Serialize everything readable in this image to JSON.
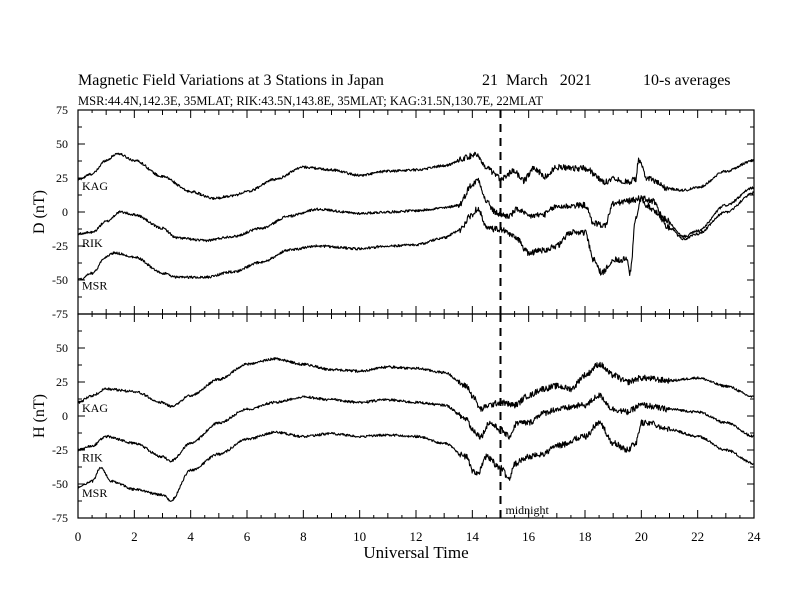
{
  "header": {
    "title": "Magnetic Field Variations at 3 Stations in Japan",
    "date": "21  March   2021",
    "averaging": "10-s averages",
    "stations_line": "MSR:44.4N,142.3E, 35MLAT;  RIK:43.5N,143.8E, 35MLAT;  KAG:31.5N,130.7E, 22MLAT"
  },
  "chart_data": [
    {
      "type": "line",
      "panel": "D",
      "ylabel": "D (nT)",
      "ylim": [
        -75,
        75
      ],
      "yticks": [
        -75,
        -50,
        -25,
        0,
        25,
        50,
        75
      ],
      "xlim": [
        0,
        24
      ],
      "xticks": [
        0,
        2,
        4,
        6,
        8,
        10,
        12,
        14,
        16,
        18,
        20,
        22,
        24
      ],
      "annotation": {
        "x": 15,
        "label": "midnight"
      },
      "series": [
        {
          "name": "KAG",
          "points": [
            [
              0,
              24
            ],
            [
              0.5,
              28
            ],
            [
              1,
              38
            ],
            [
              1.4,
              43
            ],
            [
              2,
              38
            ],
            [
              3,
              26
            ],
            [
              4,
              15
            ],
            [
              4.8,
              10
            ],
            [
              5.5,
              12
            ],
            [
              6,
              15
            ],
            [
              7,
              24
            ],
            [
              8,
              33
            ],
            [
              9,
              31
            ],
            [
              10,
              27
            ],
            [
              11,
              30
            ],
            [
              12,
              31
            ],
            [
              13,
              34
            ],
            [
              13.8,
              40
            ],
            [
              14.1,
              43
            ],
            [
              14.5,
              32
            ],
            [
              15,
              25
            ],
            [
              15.5,
              30
            ],
            [
              15.8,
              23
            ],
            [
              16.2,
              32
            ],
            [
              16.6,
              26
            ],
            [
              17,
              33
            ],
            [
              18,
              32
            ],
            [
              18.7,
              22
            ],
            [
              19,
              25
            ],
            [
              19.5,
              22
            ],
            [
              19.8,
              24
            ],
            [
              19.9,
              38
            ],
            [
              20.2,
              25
            ],
            [
              21,
              17
            ],
            [
              21.5,
              16
            ],
            [
              22,
              18
            ],
            [
              23,
              30
            ],
            [
              24,
              38
            ]
          ]
        },
        {
          "name": "RIK",
          "points": [
            [
              0,
              -16
            ],
            [
              0.5,
              -15
            ],
            [
              1,
              -7
            ],
            [
              1.5,
              0
            ],
            [
              2,
              -2
            ],
            [
              3,
              -12
            ],
            [
              3.5,
              -19
            ],
            [
              4.5,
              -21
            ],
            [
              5.5,
              -18
            ],
            [
              6.5,
              -12
            ],
            [
              7.5,
              -3
            ],
            [
              8.5,
              2
            ],
            [
              10,
              -1
            ],
            [
              11,
              0
            ],
            [
              12,
              1
            ],
            [
              13,
              3
            ],
            [
              13.5,
              5
            ],
            [
              14,
              20
            ],
            [
              14.2,
              24
            ],
            [
              14.5,
              8
            ],
            [
              14.8,
              0
            ],
            [
              15,
              -2
            ],
            [
              15.3,
              -3
            ],
            [
              15.6,
              2
            ],
            [
              16,
              -3
            ],
            [
              16.5,
              -2
            ],
            [
              17,
              4
            ],
            [
              18,
              5
            ],
            [
              18.3,
              -8
            ],
            [
              18.7,
              -10
            ],
            [
              19,
              6
            ],
            [
              19.5,
              8
            ],
            [
              20,
              10
            ],
            [
              20.4,
              8
            ],
            [
              20.8,
              -5
            ],
            [
              21.5,
              -18
            ],
            [
              22,
              -14
            ],
            [
              23,
              5
            ],
            [
              24,
              18
            ]
          ]
        },
        {
          "name": "MSR",
          "points": [
            [
              0,
              -50
            ],
            [
              0.5,
              -45
            ],
            [
              1,
              -33
            ],
            [
              1.3,
              -30
            ],
            [
              2,
              -33
            ],
            [
              3,
              -45
            ],
            [
              3.5,
              -48
            ],
            [
              4.5,
              -48
            ],
            [
              5.5,
              -44
            ],
            [
              6.5,
              -37
            ],
            [
              7.5,
              -28
            ],
            [
              8.5,
              -25
            ],
            [
              10,
              -27
            ],
            [
              11,
              -25
            ],
            [
              12,
              -24
            ],
            [
              13,
              -19
            ],
            [
              13.5,
              -14
            ],
            [
              14,
              -2
            ],
            [
              14.2,
              3
            ],
            [
              14.5,
              -12
            ],
            [
              15,
              -13
            ],
            [
              15.5,
              -18
            ],
            [
              16,
              -30
            ],
            [
              16.5,
              -28
            ],
            [
              17,
              -25
            ],
            [
              17.5,
              -15
            ],
            [
              18,
              -15
            ],
            [
              18.3,
              -35
            ],
            [
              18.6,
              -45
            ],
            [
              19,
              -35
            ],
            [
              19.5,
              -35
            ],
            [
              19.6,
              -45
            ],
            [
              19.8,
              -5
            ],
            [
              20,
              10
            ],
            [
              20.2,
              5
            ],
            [
              20.5,
              0
            ],
            [
              21,
              -12
            ],
            [
              21.5,
              -20
            ],
            [
              22,
              -16
            ],
            [
              23,
              0
            ],
            [
              24,
              14
            ]
          ]
        }
      ]
    },
    {
      "type": "line",
      "panel": "H",
      "ylabel": "H (nT)",
      "xlabel": "Universal Time",
      "ylim": [
        -75,
        75
      ],
      "yticks": [
        -75,
        -50,
        -25,
        0,
        25,
        50,
        75
      ],
      "xlim": [
        0,
        24
      ],
      "xticks": [
        0,
        2,
        4,
        6,
        8,
        10,
        12,
        14,
        16,
        18,
        20,
        22,
        24
      ],
      "annotation": {
        "x": 15,
        "label": "midnight"
      },
      "series": [
        {
          "name": "KAG",
          "points": [
            [
              0,
              10
            ],
            [
              0.5,
              15
            ],
            [
              1,
              20
            ],
            [
              2,
              18
            ],
            [
              3,
              10
            ],
            [
              3.3,
              7
            ],
            [
              4,
              15
            ],
            [
              5,
              27
            ],
            [
              6,
              38
            ],
            [
              7,
              42
            ],
            [
              8,
              38
            ],
            [
              9,
              34
            ],
            [
              10,
              33
            ],
            [
              11,
              36
            ],
            [
              12,
              35
            ],
            [
              13,
              32
            ],
            [
              13.8,
              22
            ],
            [
              14,
              15
            ],
            [
              14.3,
              5
            ],
            [
              14.6,
              8
            ],
            [
              15,
              10
            ],
            [
              15.5,
              8
            ],
            [
              16,
              15
            ],
            [
              16.5,
              20
            ],
            [
              17,
              22
            ],
            [
              17.5,
              20
            ],
            [
              18,
              30
            ],
            [
              18.5,
              38
            ],
            [
              19,
              30
            ],
            [
              19.5,
              25
            ],
            [
              20,
              28
            ],
            [
              21,
              26
            ],
            [
              22,
              28
            ],
            [
              23,
              22
            ],
            [
              24,
              14
            ]
          ]
        },
        {
          "name": "RIK",
          "points": [
            [
              0,
              -25
            ],
            [
              0.5,
              -22
            ],
            [
              1,
              -15
            ],
            [
              2,
              -20
            ],
            [
              3,
              -30
            ],
            [
              3.3,
              -33
            ],
            [
              4,
              -20
            ],
            [
              5,
              -5
            ],
            [
              6,
              5
            ],
            [
              7,
              10
            ],
            [
              8,
              14
            ],
            [
              9,
              12
            ],
            [
              10,
              10
            ],
            [
              11,
              12
            ],
            [
              12,
              10
            ],
            [
              13,
              8
            ],
            [
              13.8,
              -2
            ],
            [
              14,
              -10
            ],
            [
              14.3,
              -15
            ],
            [
              14.6,
              -5
            ],
            [
              15,
              -10
            ],
            [
              15.3,
              -15
            ],
            [
              15.6,
              -5
            ],
            [
              16,
              -5
            ],
            [
              16.5,
              2
            ],
            [
              17,
              5
            ],
            [
              18,
              8
            ],
            [
              18.5,
              15
            ],
            [
              19,
              5
            ],
            [
              19.5,
              3
            ],
            [
              20,
              8
            ],
            [
              21,
              5
            ],
            [
              22,
              3
            ],
            [
              23,
              -5
            ],
            [
              24,
              -15
            ]
          ]
        },
        {
          "name": "MSR",
          "points": [
            [
              0,
              -52
            ],
            [
              0.5,
              -48
            ],
            [
              0.8,
              -38
            ],
            [
              1.2,
              -48
            ],
            [
              2,
              -54
            ],
            [
              3,
              -58
            ],
            [
              3.3,
              -62
            ],
            [
              4,
              -40
            ],
            [
              5,
              -28
            ],
            [
              6,
              -17
            ],
            [
              7,
              -12
            ],
            [
              8,
              -15
            ],
            [
              9,
              -13
            ],
            [
              10,
              -15
            ],
            [
              11,
              -14
            ],
            [
              12,
              -15
            ],
            [
              13,
              -20
            ],
            [
              13.8,
              -30
            ],
            [
              14,
              -40
            ],
            [
              14.2,
              -42
            ],
            [
              14.5,
              -30
            ],
            [
              15,
              -38
            ],
            [
              15.3,
              -46
            ],
            [
              15.5,
              -35
            ],
            [
              16,
              -30
            ],
            [
              16.5,
              -28
            ],
            [
              17,
              -22
            ],
            [
              18,
              -15
            ],
            [
              18.5,
              -5
            ],
            [
              19,
              -20
            ],
            [
              19.5,
              -25
            ],
            [
              19.8,
              -20
            ],
            [
              20,
              -5
            ],
            [
              20.3,
              -5
            ],
            [
              21,
              -10
            ],
            [
              22,
              -15
            ],
            [
              23,
              -25
            ],
            [
              24,
              -35
            ]
          ]
        }
      ]
    }
  ]
}
